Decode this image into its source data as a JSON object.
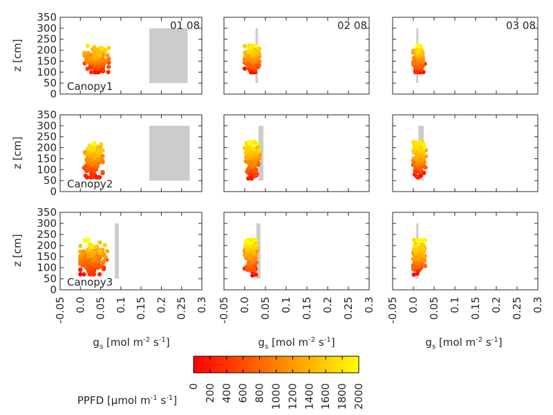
{
  "figure": {
    "ylabel": "z [cm]",
    "xlabel_main": "g",
    "xlabel_sub": "s",
    "xlabel_unit": "[mol m",
    "xlabel_exp1": "-2",
    "xlabel_mid": " s",
    "xlabel_exp2": "-1",
    "xlabel_close": "]"
  },
  "chart_data": {
    "type": "scatter",
    "layout": "3x3 panel grid, shared axes",
    "xlim": [
      -0.05,
      0.3
    ],
    "ylim": [
      0,
      350
    ],
    "xticks": [
      "-0.05",
      "0.0",
      "0.05",
      "0.1",
      "0.15",
      "0.2",
      "0.25",
      "0.3"
    ],
    "yticks": [
      "0",
      "50",
      "100",
      "150",
      "200",
      "250",
      "300",
      "350"
    ],
    "dates": [
      "01 08",
      "02 08",
      "03 08"
    ],
    "rows": [
      "Canopy1",
      "Canopy2",
      "Canopy3"
    ],
    "marker_color_by": "PPFD",
    "band_color": "#cccccc",
    "panels": [
      {
        "row": 0,
        "col": 0,
        "date_label": "01 08",
        "row_label": "Canopy1",
        "cloud": {
          "x_range": [
            0.01,
            0.07
          ],
          "z_range": [
            100,
            220
          ],
          "x_center": 0.04,
          "z_center": 155
        },
        "band": {
          "x": [
            0.17,
            0.265
          ],
          "z": [
            50,
            300
          ]
        }
      },
      {
        "row": 0,
        "col": 1,
        "date_label": "02 08",
        "row_label": "",
        "cloud": {
          "x_range": [
            0.0,
            0.035
          ],
          "z_range": [
            100,
            220
          ],
          "x_center": 0.018,
          "z_center": 160
        },
        "band": {
          "x": [
            0.026,
            0.032
          ],
          "z": [
            50,
            300
          ]
        }
      },
      {
        "row": 0,
        "col": 2,
        "date_label": "03 08",
        "row_label": "",
        "cloud": {
          "x_range": [
            0.0,
            0.028
          ],
          "z_range": [
            100,
            220
          ],
          "x_center": 0.012,
          "z_center": 160
        },
        "band": {
          "x": [
            0.007,
            0.011
          ],
          "z": [
            50,
            300
          ]
        }
      },
      {
        "row": 1,
        "col": 0,
        "date_label": "",
        "row_label": "Canopy2",
        "cloud": {
          "x_range": [
            0.005,
            0.055
          ],
          "z_range": [
            65,
            225
          ],
          "x_center": 0.03,
          "z_center": 145
        },
        "band": {
          "x": [
            0.17,
            0.27
          ],
          "z": [
            50,
            300
          ]
        }
      },
      {
        "row": 1,
        "col": 1,
        "date_label": "",
        "row_label": "",
        "cloud": {
          "x_range": [
            0.0,
            0.035
          ],
          "z_range": [
            60,
            225
          ],
          "x_center": 0.018,
          "z_center": 150
        },
        "band": {
          "x": [
            0.033,
            0.045
          ],
          "z": [
            50,
            300
          ]
        }
      },
      {
        "row": 1,
        "col": 2,
        "date_label": "",
        "row_label": "",
        "cloud": {
          "x_range": [
            0.0,
            0.03
          ],
          "z_range": [
            65,
            225
          ],
          "x_center": 0.014,
          "z_center": 150
        },
        "band": {
          "x": [
            0.012,
            0.025
          ],
          "z": [
            50,
            300
          ]
        }
      },
      {
        "row": 2,
        "col": 0,
        "date_label": "",
        "row_label": "Canopy3",
        "cloud": {
          "x_range": [
            0.0,
            0.07
          ],
          "z_range": [
            70,
            225
          ],
          "x_center": 0.03,
          "z_center": 140
        },
        "band": {
          "x": [
            0.085,
            0.095
          ],
          "z": [
            50,
            300
          ]
        }
      },
      {
        "row": 2,
        "col": 1,
        "date_label": "",
        "row_label": "",
        "cloud": {
          "x_range": [
            0.0,
            0.03
          ],
          "z_range": [
            65,
            225
          ],
          "x_center": 0.015,
          "z_center": 150
        },
        "band": {
          "x": [
            0.028,
            0.038
          ],
          "z": [
            50,
            300
          ]
        }
      },
      {
        "row": 2,
        "col": 2,
        "date_label": "",
        "row_label": "",
        "cloud": {
          "x_range": [
            0.0,
            0.028
          ],
          "z_range": [
            55,
            225
          ],
          "x_center": 0.012,
          "z_center": 150
        },
        "band": {
          "x": [
            0.007,
            0.011
          ],
          "z": [
            50,
            300
          ]
        }
      }
    ],
    "colorbar": {
      "label_main": "PPFD [",
      "label_unit": "μmol m",
      "label_exp1": "-1",
      "label_mid": " s",
      "label_exp2": "-1",
      "label_close": "]",
      "range": [
        0,
        2000
      ],
      "ticks": [
        "0",
        "200",
        "400",
        "600",
        "800",
        "1000",
        "1200",
        "1400",
        "1600",
        "1800",
        "2000"
      ],
      "colormap": "autumn",
      "colors": [
        "#ff0000",
        "#ffff00"
      ]
    }
  }
}
